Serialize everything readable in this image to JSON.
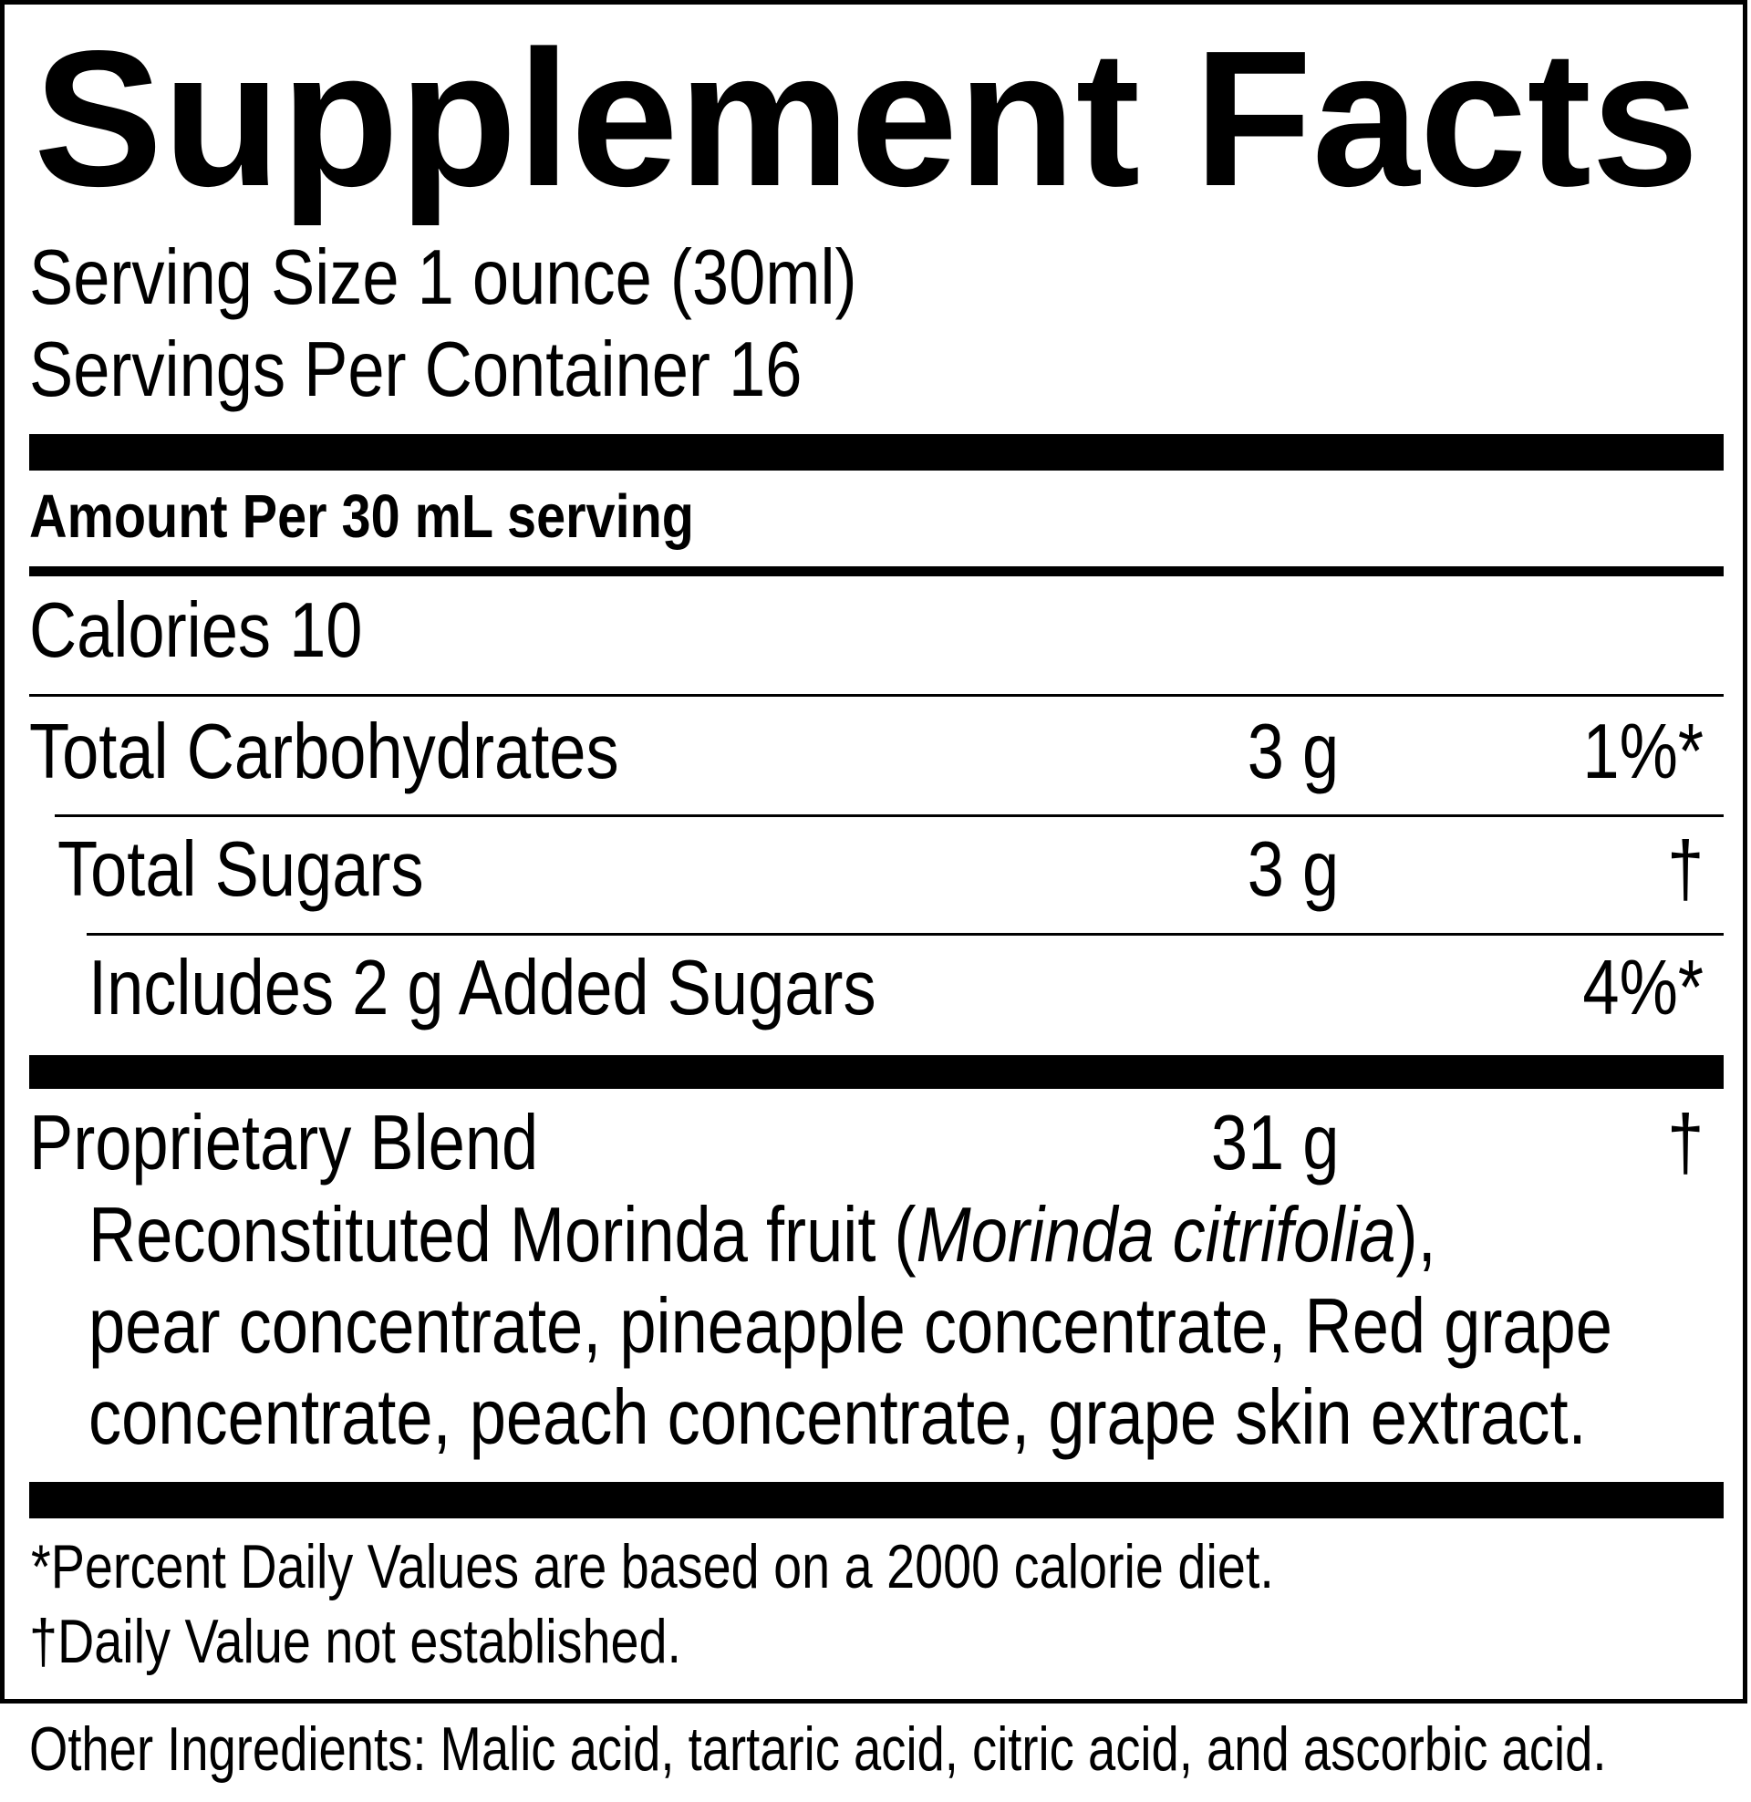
{
  "title": "Supplement Facts",
  "serving_size": "Serving Size 1 ounce (30ml)",
  "servings_per_container": "Servings Per Container 16",
  "amount_per": "Amount Per 30 mL serving",
  "calories": "Calories 10",
  "rows": [
    {
      "label": "Total Carbohydrates",
      "amount": "3 g",
      "dv": "1%*"
    },
    {
      "label": "Total Sugars",
      "amount": "3 g",
      "dv": "†"
    },
    {
      "label": "Includes 2 g Added Sugars",
      "amount": "",
      "dv": "4%*"
    },
    {
      "label": "Proprietary Blend",
      "amount": "31 g",
      "dv": "†"
    }
  ],
  "blend": {
    "line1_prefix": "Reconstituted Morinda fruit (",
    "line1_italic": "Morinda citrifolia",
    "line1_suffix": "),",
    "line2": "pear concentrate, pineapple concentrate, Red grape",
    "line3": "concentrate, peach concentrate, grape skin extract."
  },
  "footnotes": [
    "*Percent Daily Values are based on a 2000 calorie diet.",
    "†Daily Value not established."
  ],
  "other_ingredients": "Other Ingredients: Malic acid, tartaric acid, citric acid, and ascorbic acid."
}
